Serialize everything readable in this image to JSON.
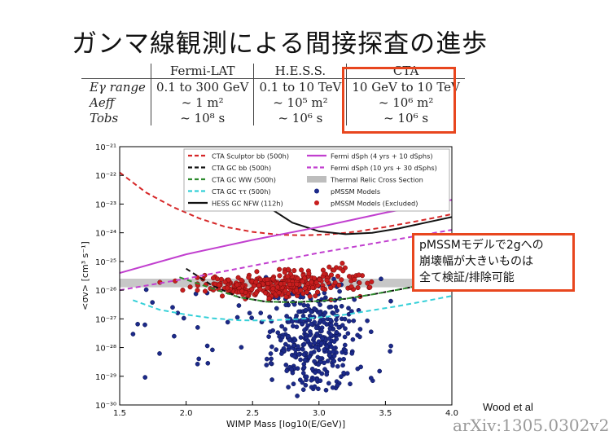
{
  "slide": {
    "title": "ガンマ線観測による間接探査の進歩",
    "annotation_lines": [
      "pMSSMモデルで2gへの",
      "崩壊幅が大きいものは",
      "全て検証/排除可能"
    ],
    "credit": "Wood et al",
    "arxiv": "arXiv:1305.0302v2",
    "accent": "#e8461e"
  },
  "table": {
    "columns": [
      "",
      "Fermi-LAT",
      "H.E.S.S.",
      "CTA"
    ],
    "rows": [
      {
        "label": "Eγ range",
        "cells": [
          "0.1 to 300 GeV",
          "0.1 to 10 TeV",
          "10 GeV to 10 TeV"
        ]
      },
      {
        "label": "Aeff",
        "cells": [
          "~ 1 m²",
          "~ 10⁵ m²",
          "~ 10⁶ m²"
        ]
      },
      {
        "label": "Tobs",
        "cells": [
          "~ 10⁸ s",
          "~ 10⁶ s",
          "~ 10⁶ s"
        ]
      }
    ]
  },
  "chart_data": {
    "type": "scatter",
    "xlabel": "WIMP Mass [log10(E/GeV)]",
    "ylabel": "<σv> [cm³ s⁻¹]",
    "xlim": [
      1.5,
      4.0
    ],
    "ylim_log10": [
      -30,
      -21
    ],
    "x_ticks": [
      "1.5",
      "2.0",
      "2.5",
      "3.0",
      "3.5",
      "4.0"
    ],
    "y_ticks": [
      "10⁻²¹",
      "10⁻²²",
      "10⁻²³",
      "10⁻²⁴",
      "10⁻²⁵",
      "10⁻²⁶",
      "10⁻²⁷",
      "10⁻²⁸",
      "10⁻²⁹",
      "10⁻³⁰"
    ],
    "thermal_band_log10": [
      -25.9,
      -25.6
    ],
    "legend": [
      {
        "label": "CTA Sculptor bb (500h)",
        "color": "#d62728",
        "style": "dashed"
      },
      {
        "label": "CTA GC bb (500h)",
        "color": "#111111",
        "style": "dashed"
      },
      {
        "label": "CTA GC WW (500h)",
        "color": "#2e8b2e",
        "style": "dashed"
      },
      {
        "label": "CTA GC ττ (500h)",
        "color": "#35d0d8",
        "style": "dashed"
      },
      {
        "label": "HESS GC NFW (112h)",
        "color": "#111111",
        "style": "solid"
      },
      {
        "label": "Fermi dSph (4 yrs + 10 dSphs)",
        "color": "#c13fcf",
        "style": "solid"
      },
      {
        "label": "Fermi dSph (10 yrs + 30 dSphs)",
        "color": "#c13fcf",
        "style": "dashed"
      },
      {
        "label": "Thermal Relic Cross Section",
        "color": "#bdbdbd",
        "style": "band"
      },
      {
        "label": "pMSSM Models",
        "color": "#1c2a8a",
        "style": "points"
      },
      {
        "label": "pMSSM Models (Excluded)",
        "color": "#c81e1e",
        "style": "points"
      }
    ],
    "series": [
      {
        "name": "CTA Sculptor bb (500h)",
        "x": [
          1.5,
          1.7,
          1.9,
          2.1,
          2.3,
          2.5,
          2.7,
          2.9,
          3.1,
          3.3,
          3.5,
          3.7,
          3.9,
          4.0
        ],
        "y": [
          -21.9,
          -22.6,
          -23.1,
          -23.5,
          -23.8,
          -23.97,
          -24.07,
          -24.09,
          -24.05,
          -23.95,
          -23.8,
          -23.63,
          -23.45,
          -23.35
        ]
      },
      {
        "name": "CTA GC bb (500h)",
        "x": [
          2.0,
          2.2,
          2.4,
          2.6,
          2.8,
          3.0,
          3.2,
          3.4,
          3.6,
          3.8,
          4.0
        ],
        "y": [
          -25.25,
          -25.85,
          -26.25,
          -26.4,
          -26.42,
          -26.38,
          -26.3,
          -26.15,
          -25.98,
          -25.8,
          -25.6
        ]
      },
      {
        "name": "CTA GC WW (500h)",
        "x": [
          1.95,
          2.2,
          2.4,
          2.6,
          2.8,
          3.0,
          3.2,
          3.4,
          3.6,
          3.8,
          4.0
        ],
        "y": [
          -25.55,
          -25.95,
          -26.25,
          -26.4,
          -26.42,
          -26.38,
          -26.3,
          -26.15,
          -25.98,
          -25.8,
          -25.6
        ]
      },
      {
        "name": "CTA GC ττ (500h)",
        "x": [
          1.6,
          1.8,
          2.0,
          2.2,
          2.4,
          2.6,
          2.8,
          3.0,
          3.2,
          3.4,
          3.6,
          3.8,
          4.0
        ],
        "y": [
          -26.35,
          -26.68,
          -26.85,
          -26.98,
          -27.05,
          -27.06,
          -27.02,
          -26.95,
          -26.85,
          -26.7,
          -26.55,
          -26.38,
          -26.2
        ]
      },
      {
        "name": "HESS GC NFW (112h)",
        "x": [
          2.6,
          2.8,
          3.0,
          3.2,
          3.4,
          3.6,
          3.8,
          4.0
        ],
        "y": [
          -23.05,
          -23.65,
          -23.95,
          -24.05,
          -24.0,
          -23.85,
          -23.65,
          -23.45
        ]
      },
      {
        "name": "Fermi dSph (4 yrs + 10 dSphs)",
        "x": [
          1.5,
          2.0,
          2.5,
          3.0,
          3.5,
          4.0
        ],
        "y": [
          -25.4,
          -24.75,
          -24.25,
          -23.8,
          -23.3,
          -22.85
        ]
      },
      {
        "name": "Fermi dSph (10 yrs + 30 dSphs)",
        "x": [
          1.5,
          2.0,
          2.5,
          3.0,
          3.5,
          4.0
        ],
        "y": [
          -26.0,
          -25.6,
          -25.15,
          -24.7,
          -24.3,
          -23.9
        ]
      }
    ],
    "scatter_regions": [
      {
        "name": "pMSSM Models",
        "x_range": [
          1.6,
          3.55
        ],
        "y_range_log10": [
          -29.8,
          -25.5
        ],
        "count": 420
      },
      {
        "name": "pMSSM Models (Excluded)",
        "x_range": [
          1.75,
          3.4
        ],
        "y_range_log10": [
          -26.35,
          -25.05
        ],
        "count": 330
      }
    ]
  }
}
